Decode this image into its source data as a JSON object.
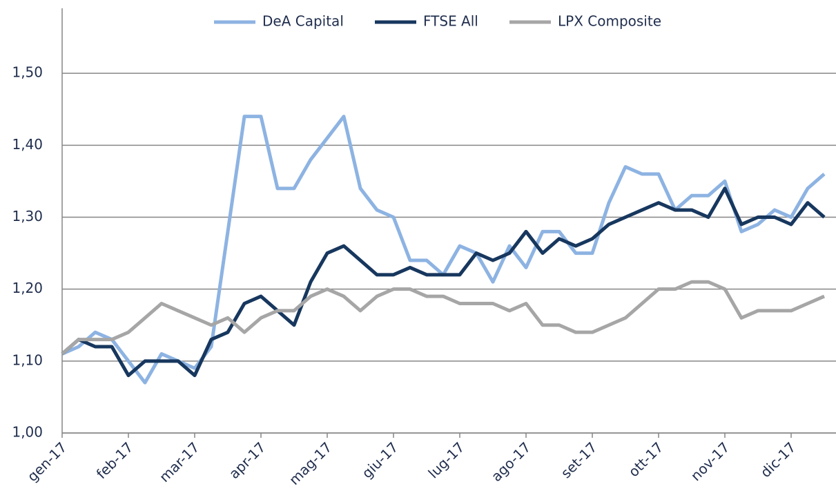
{
  "chart_data": {
    "type": "line",
    "categories": [
      "gen-17",
      null,
      null,
      null,
      "feb-17",
      null,
      null,
      null,
      "mar-17",
      null,
      null,
      null,
      "apr-17",
      null,
      null,
      null,
      "mag-17",
      null,
      null,
      null,
      "giu-17",
      null,
      null,
      null,
      "lug-17",
      null,
      null,
      null,
      "ago-17",
      null,
      null,
      null,
      "set-17",
      null,
      null,
      null,
      "ott-17",
      null,
      null,
      null,
      "nov-17",
      null,
      null,
      null,
      "dic-17",
      null,
      null
    ],
    "series": [
      {
        "name": "DeA Capital",
        "color": "#8db3e2",
        "values": [
          1.11,
          1.12,
          1.14,
          1.13,
          1.1,
          1.07,
          1.11,
          1.1,
          1.09,
          1.12,
          1.28,
          1.44,
          1.44,
          1.34,
          1.34,
          1.38,
          1.41,
          1.44,
          1.34,
          1.31,
          1.3,
          1.24,
          1.24,
          1.22,
          1.26,
          1.25,
          1.21,
          1.26,
          1.23,
          1.28,
          1.28,
          1.25,
          1.25,
          1.32,
          1.37,
          1.36,
          1.36,
          1.31,
          1.33,
          1.33,
          1.35,
          1.28,
          1.29,
          1.31,
          1.3,
          1.34,
          1.36
        ]
      },
      {
        "name": "FTSE All",
        "color": "#17375e",
        "values": [
          1.11,
          1.13,
          1.12,
          1.12,
          1.08,
          1.1,
          1.1,
          1.1,
          1.08,
          1.13,
          1.14,
          1.18,
          1.19,
          1.17,
          1.15,
          1.21,
          1.25,
          1.26,
          1.24,
          1.22,
          1.22,
          1.23,
          1.22,
          1.22,
          1.22,
          1.25,
          1.24,
          1.25,
          1.28,
          1.25,
          1.27,
          1.26,
          1.27,
          1.29,
          1.3,
          1.31,
          1.32,
          1.31,
          1.31,
          1.3,
          1.34,
          1.29,
          1.3,
          1.3,
          1.29,
          1.32,
          1.3
        ]
      },
      {
        "name": "LPX Composite",
        "color": "#a6a6a6",
        "values": [
          1.11,
          1.13,
          1.13,
          1.13,
          1.14,
          1.16,
          1.18,
          1.17,
          1.16,
          1.15,
          1.16,
          1.14,
          1.16,
          1.17,
          1.17,
          1.19,
          1.2,
          1.19,
          1.17,
          1.19,
          1.2,
          1.2,
          1.19,
          1.19,
          1.18,
          1.18,
          1.18,
          1.17,
          1.18,
          1.15,
          1.15,
          1.14,
          1.14,
          1.15,
          1.16,
          1.18,
          1.2,
          1.2,
          1.21,
          1.21,
          1.2,
          1.16,
          1.17,
          1.17,
          1.17,
          1.18,
          1.19
        ]
      }
    ],
    "ylim": [
      1,
      1.6
    ],
    "yticks": [
      {
        "value": 1,
        "label": "1,00"
      },
      {
        "value": 1.1,
        "label": "1,10"
      },
      {
        "value": 1.2,
        "label": "1,20"
      },
      {
        "value": 1.3,
        "label": "1,30"
      },
      {
        "value": 1.4,
        "label": "1,40"
      },
      {
        "value": 1.5,
        "label": "1,50"
      }
    ],
    "grid": true,
    "legend": "top"
  }
}
